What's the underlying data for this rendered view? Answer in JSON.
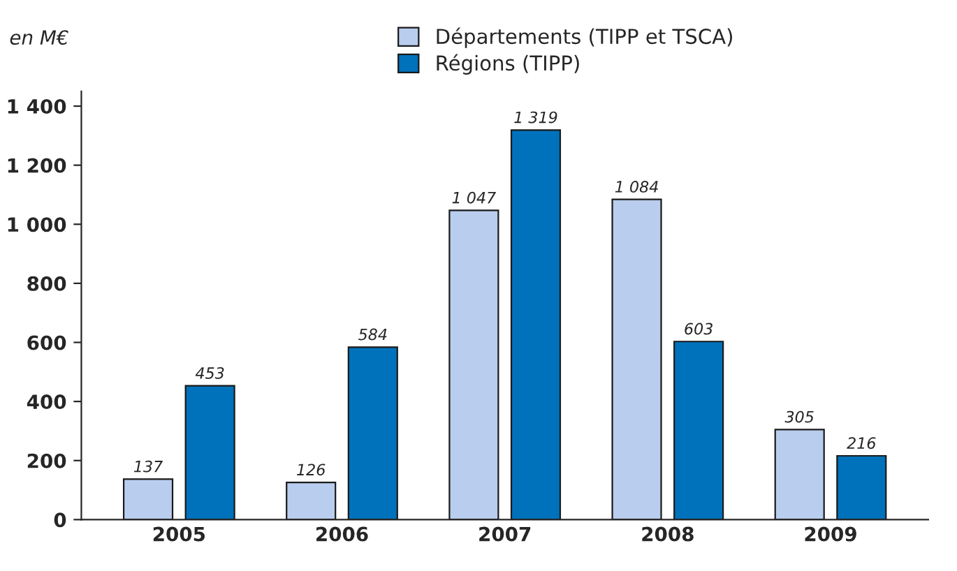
{
  "chart_data": {
    "type": "bar",
    "ylabel": "en M€",
    "categories": [
      "2005",
      "2006",
      "2007",
      "2008",
      "2009"
    ],
    "series": [
      {
        "name": "Départements (TIPP et TSCA)",
        "color": "#b9cdee",
        "values": [
          137,
          126,
          1047,
          1084,
          305
        ],
        "value_labels": [
          "137",
          "126",
          "1 047",
          "1 084",
          "305"
        ]
      },
      {
        "name": "Régions (TIPP)",
        "color": "#0072bc",
        "values": [
          453,
          584,
          1319,
          603,
          216
        ],
        "value_labels": [
          "453",
          "584",
          "1 319",
          "603",
          "216"
        ]
      }
    ],
    "ylim": [
      0,
      1450
    ],
    "yticks": [
      0,
      200,
      400,
      600,
      800,
      {
        "value": 1000,
        "label": "1 000"
      },
      {
        "value": 1200,
        "label": "1 200"
      },
      {
        "value": 1400,
        "label": "1 400"
      }
    ],
    "grid": false,
    "legend": "top right"
  }
}
